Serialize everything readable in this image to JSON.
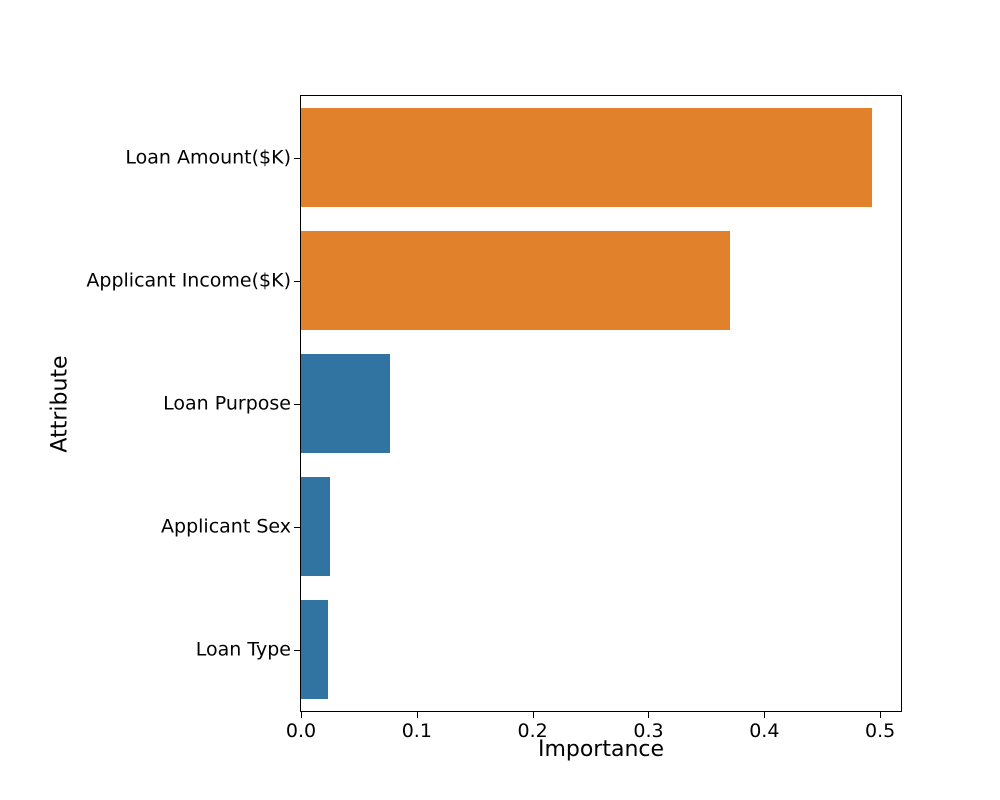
{
  "figure": {
    "background": "#ffffff",
    "text_color": "#000000",
    "spine_color": "#000000"
  },
  "chart_data": {
    "type": "bar",
    "orientation": "horizontal",
    "title": "",
    "xlabel": "Importance",
    "ylabel": "Attribute",
    "categories": [
      "Loan Amount($K)",
      "Applicant Income($K)",
      "Loan Purpose",
      "Applicant Sex",
      "Loan Type"
    ],
    "values": [
      0.493,
      0.37,
      0.077,
      0.025,
      0.023
    ],
    "bar_colors": [
      "#e1812c",
      "#e1812c",
      "#3274a1",
      "#3274a1",
      "#3274a1"
    ],
    "x_ticks": [
      0.0,
      0.1,
      0.2,
      0.3,
      0.4,
      0.5
    ],
    "x_tick_labels": [
      "0.0",
      "0.1",
      "0.2",
      "0.3",
      "0.4",
      "0.5"
    ],
    "xlim": [
      0,
      0.518
    ],
    "grid": false,
    "legend": null
  }
}
